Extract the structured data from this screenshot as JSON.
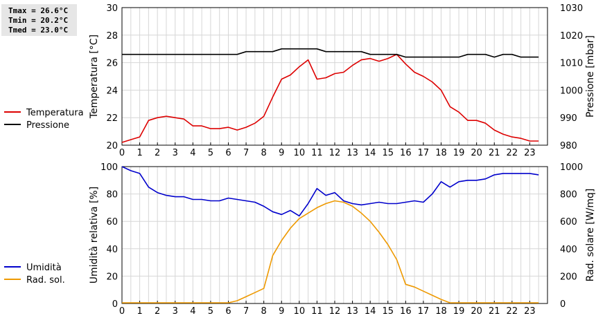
{
  "stats": {
    "tmax": "Tmax = 26.6°C",
    "tmin": "Tmin = 20.2°C",
    "tmed": "Tmed = 23.0°C"
  },
  "chart_data": [
    {
      "type": "line",
      "xlim": [
        0,
        24
      ],
      "x_ticks": [
        "0",
        "1",
        "2",
        "3",
        "4",
        "5",
        "6",
        "7",
        "8",
        "9",
        "10",
        "11",
        "12",
        "13",
        "14",
        "15",
        "16",
        "17",
        "18",
        "19",
        "20",
        "21",
        "22",
        "23"
      ],
      "ylabel": "Temperatura [°C]",
      "ylim": [
        20,
        30
      ],
      "y_ticks": [
        "20",
        "22",
        "24",
        "26",
        "28",
        "30"
      ],
      "y2label": "Pressione [mbar]",
      "y2lim": [
        980,
        1030
      ],
      "y2_ticks": [
        "980",
        "990",
        "1000",
        "1010",
        "1020",
        "1030"
      ],
      "grid": true,
      "legend_position": "left",
      "series": [
        {
          "name": "Temperatura",
          "color": "#dd0000",
          "axis": "left",
          "x": [
            0,
            0.5,
            1,
            1.5,
            2,
            2.5,
            3,
            3.5,
            4,
            4.5,
            5,
            5.5,
            6,
            6.5,
            7,
            7.5,
            8,
            8.5,
            9,
            9.5,
            10,
            10.5,
            11,
            11.5,
            12,
            12.5,
            13,
            13.5,
            14,
            14.5,
            15,
            15.5,
            16,
            16.5,
            17,
            17.5,
            18,
            18.5,
            19,
            19.5,
            20,
            20.5,
            21,
            21.5,
            22,
            22.5,
            23,
            23.5
          ],
          "y": [
            20.2,
            20.4,
            20.6,
            21.8,
            22.0,
            22.1,
            22.0,
            21.9,
            21.4,
            21.4,
            21.2,
            21.2,
            21.3,
            21.1,
            21.3,
            21.6,
            22.1,
            23.5,
            24.8,
            25.1,
            25.7,
            26.2,
            24.8,
            24.9,
            25.2,
            25.3,
            25.8,
            26.2,
            26.3,
            26.1,
            26.3,
            26.6,
            25.9,
            25.3,
            25.0,
            24.6,
            24.0,
            22.8,
            22.4,
            21.8,
            21.8,
            21.6,
            21.1,
            20.8,
            20.6,
            20.5,
            20.3,
            20.3
          ]
        },
        {
          "name": "Pressione",
          "color": "#000000",
          "axis": "right",
          "x": [
            0,
            0.5,
            1,
            1.5,
            2,
            2.5,
            3,
            3.5,
            4,
            4.5,
            5,
            5.5,
            6,
            6.5,
            7,
            7.5,
            8,
            8.5,
            9,
            9.5,
            10,
            10.5,
            11,
            11.5,
            12,
            12.5,
            13,
            13.5,
            14,
            14.5,
            15,
            15.5,
            16,
            16.5,
            17,
            17.5,
            18,
            18.5,
            19,
            19.5,
            20,
            20.5,
            21,
            21.5,
            22,
            22.5,
            23,
            23.5
          ],
          "y": [
            1013,
            1013,
            1013,
            1013,
            1013,
            1013,
            1013,
            1013,
            1013,
            1013,
            1013,
            1013,
            1013,
            1013,
            1014,
            1014,
            1014,
            1014,
            1015,
            1015,
            1015,
            1015,
            1015,
            1014,
            1014,
            1014,
            1014,
            1014,
            1013,
            1013,
            1013,
            1013,
            1012,
            1012,
            1012,
            1012,
            1012,
            1012,
            1012,
            1013,
            1013,
            1013,
            1012,
            1013,
            1013,
            1012,
            1012,
            1012
          ]
        }
      ]
    },
    {
      "type": "line",
      "xlim": [
        0,
        24
      ],
      "x_ticks": [
        "0",
        "1",
        "2",
        "3",
        "4",
        "5",
        "6",
        "7",
        "8",
        "9",
        "10",
        "11",
        "12",
        "13",
        "14",
        "15",
        "16",
        "17",
        "18",
        "19",
        "20",
        "21",
        "22",
        "23"
      ],
      "ylabel": "Umidità relativa [%]",
      "ylim": [
        0,
        100
      ],
      "y_ticks": [
        "0",
        "20",
        "40",
        "60",
        "80",
        "100"
      ],
      "y2label": "Rad. solare [W/mq]",
      "y2lim": [
        0,
        1000
      ],
      "y2_ticks": [
        "0",
        "200",
        "400",
        "600",
        "800",
        "1000"
      ],
      "grid": true,
      "legend_position": "left",
      "series": [
        {
          "name": "Umidità",
          "color": "#0000cc",
          "axis": "left",
          "x": [
            0,
            0.5,
            1,
            1.5,
            2,
            2.5,
            3,
            3.5,
            4,
            4.5,
            5,
            5.5,
            6,
            6.5,
            7,
            7.5,
            8,
            8.5,
            9,
            9.5,
            10,
            10.5,
            11,
            11.5,
            12,
            12.5,
            13,
            13.5,
            14,
            14.5,
            15,
            15.5,
            16,
            16.5,
            17,
            17.5,
            18,
            18.5,
            19,
            19.5,
            20,
            20.5,
            21,
            21.5,
            22,
            22.5,
            23,
            23.5
          ],
          "y": [
            100,
            97,
            95,
            85,
            81,
            79,
            78,
            78,
            76,
            76,
            75,
            75,
            77,
            76,
            75,
            74,
            71,
            67,
            65,
            68,
            64,
            73,
            84,
            79,
            81,
            75,
            73,
            72,
            73,
            74,
            73,
            73,
            74,
            75,
            74,
            80,
            89,
            85,
            89,
            90,
            90,
            91,
            94,
            95,
            95,
            95,
            95,
            94
          ]
        },
        {
          "name": "Rad. sol.",
          "color": "#ee9900",
          "axis": "right",
          "x": [
            0,
            0.5,
            1,
            1.5,
            2,
            2.5,
            3,
            3.5,
            4,
            4.5,
            5,
            5.5,
            6,
            6.5,
            7,
            7.5,
            8,
            8.5,
            9,
            9.5,
            10,
            10.5,
            11,
            11.5,
            12,
            12.5,
            13,
            13.5,
            14,
            14.5,
            15,
            15.5,
            16,
            16.5,
            17,
            17.5,
            18,
            18.5,
            19,
            19.5,
            20,
            20.5,
            21,
            21.5,
            22,
            22.5,
            23,
            23.5
          ],
          "y": [
            5,
            5,
            5,
            5,
            5,
            5,
            5,
            5,
            5,
            5,
            5,
            5,
            5,
            20,
            50,
            80,
            110,
            350,
            460,
            550,
            620,
            660,
            700,
            730,
            750,
            740,
            710,
            660,
            600,
            520,
            430,
            320,
            140,
            120,
            90,
            60,
            30,
            5,
            5,
            5,
            5,
            5,
            5,
            5,
            5,
            5,
            5,
            5
          ]
        }
      ]
    }
  ]
}
